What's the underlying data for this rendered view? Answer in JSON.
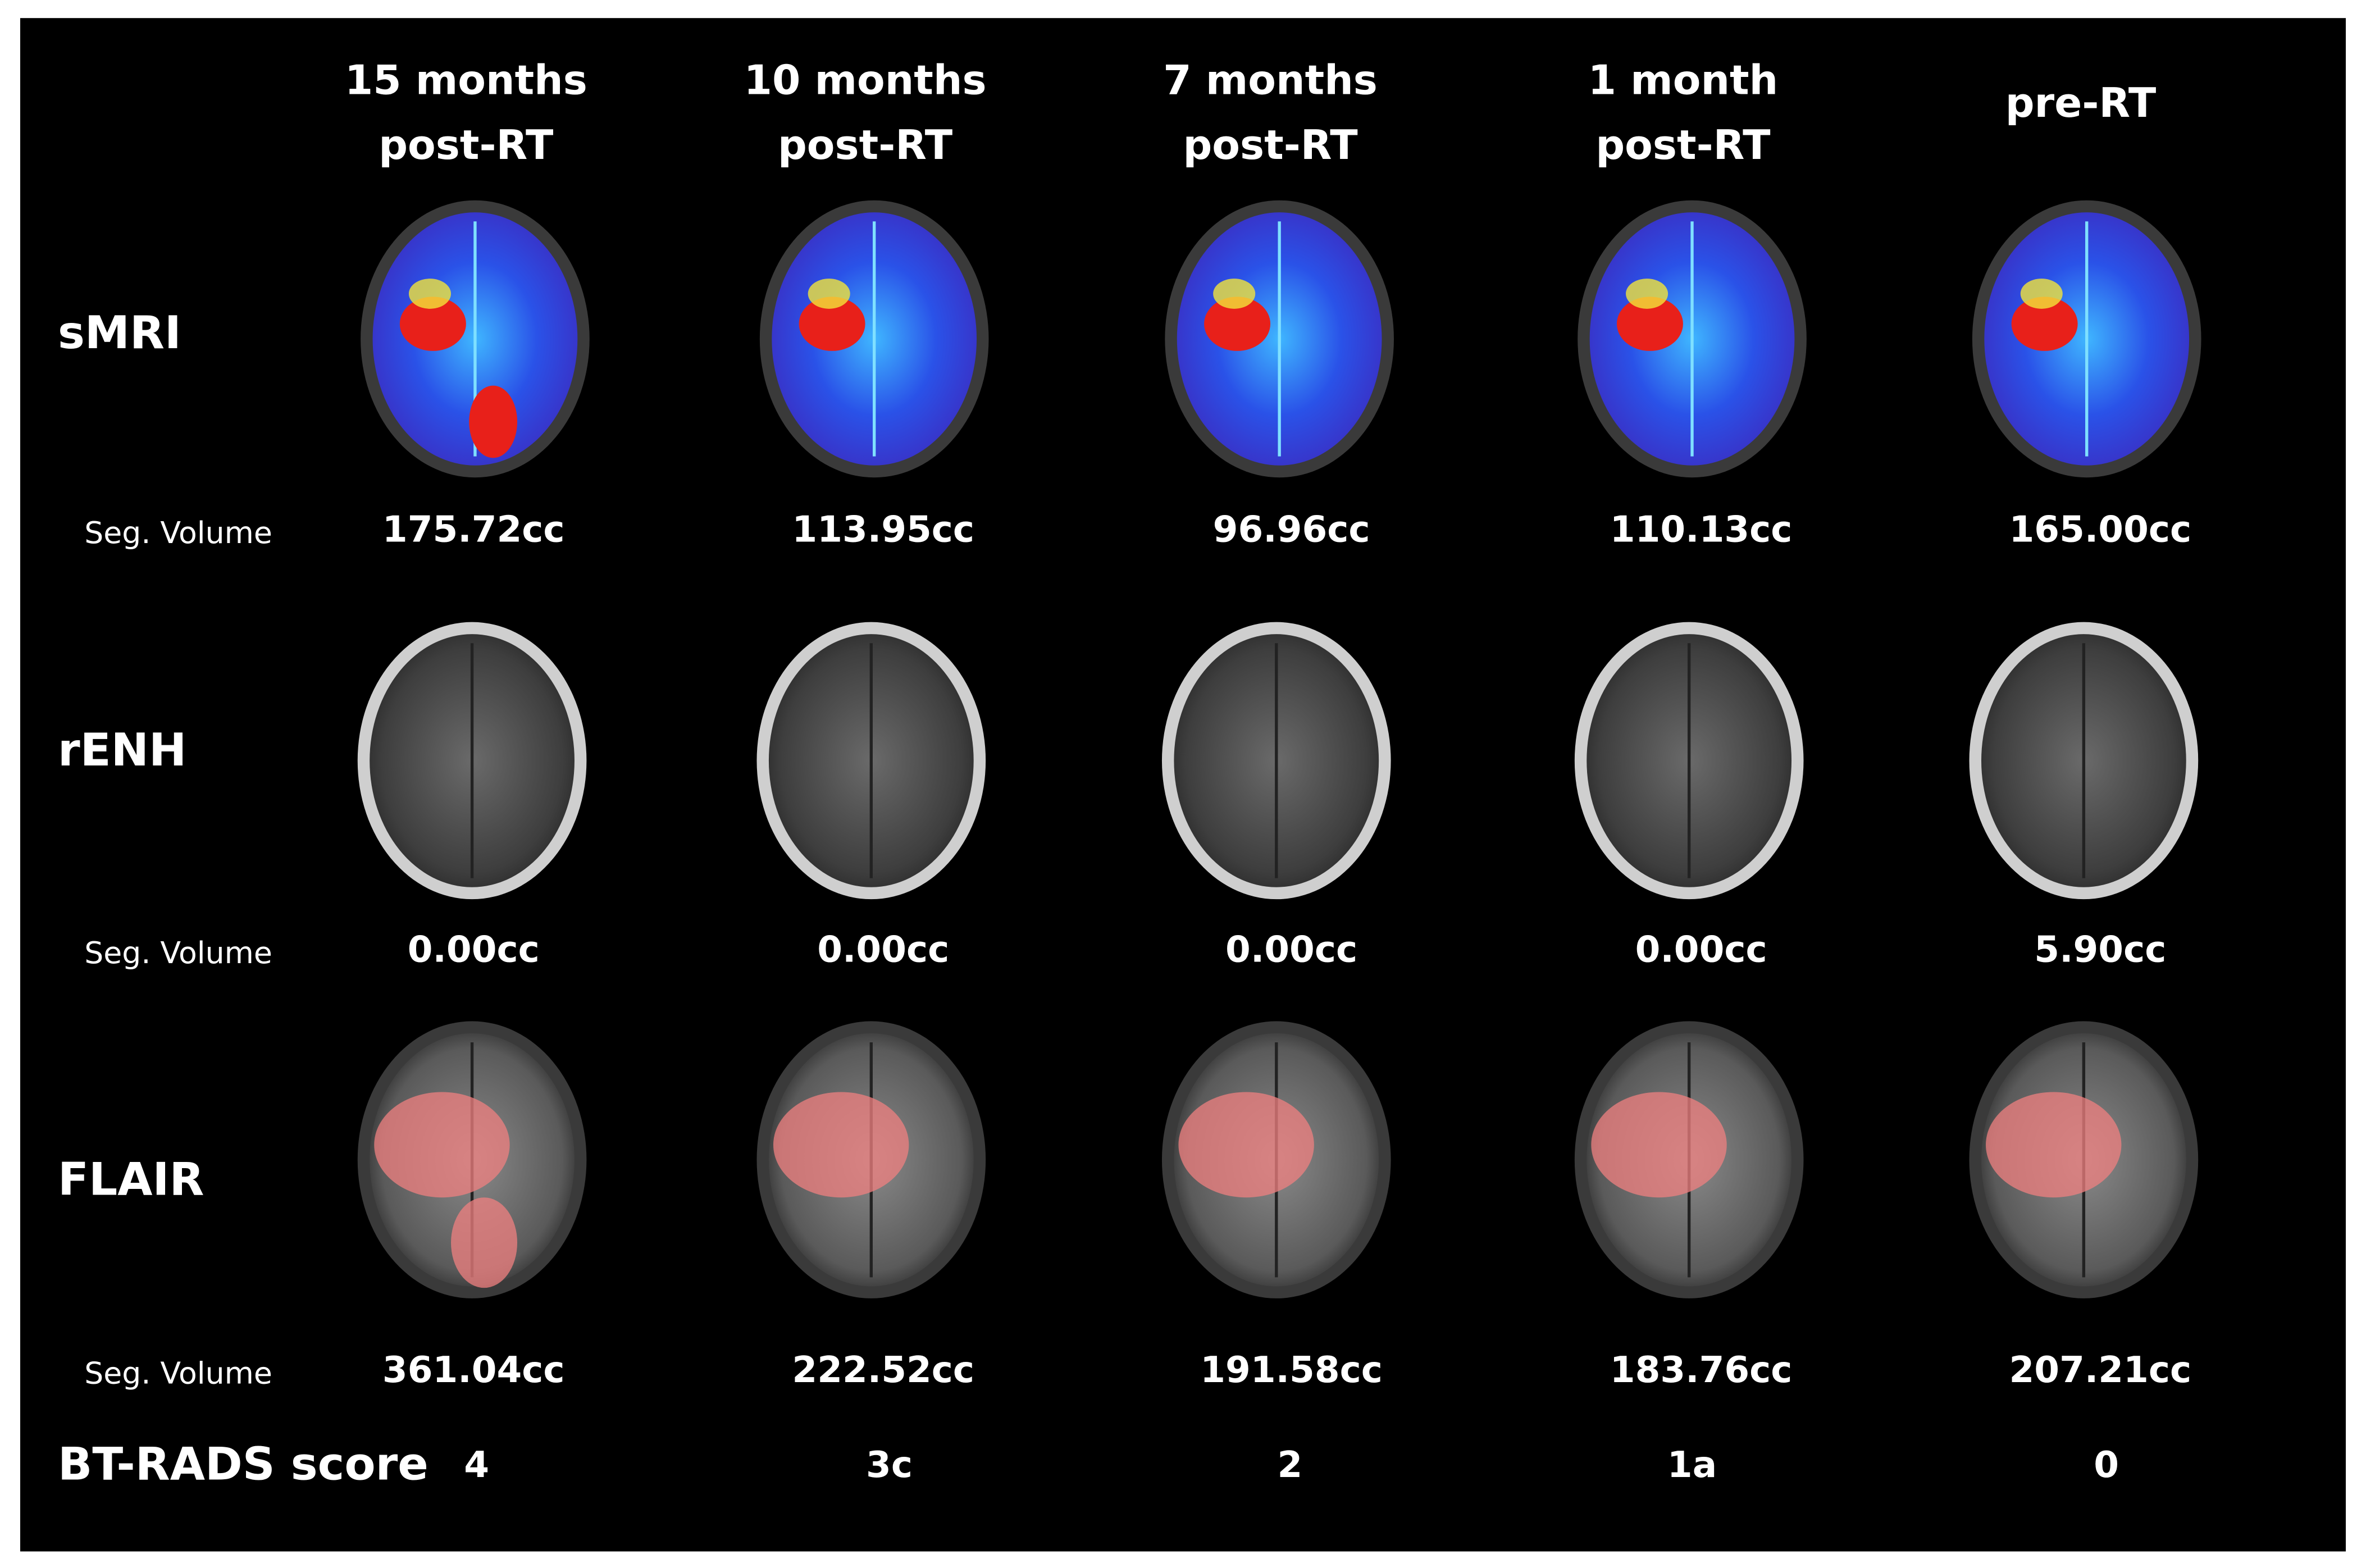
{
  "columns": [
    {
      "line1": "15 months",
      "line2": "post-RT"
    },
    {
      "line1": "10 months",
      "line2": "post-RT"
    },
    {
      "line1": "7 months",
      "line2": "post-RT"
    },
    {
      "line1": "1 month",
      "line2": "post-RT"
    },
    {
      "line1": "pre-RT"
    }
  ],
  "rows": [
    {
      "label": "sMRI",
      "seg_label": "Seg. Volume",
      "volumes": [
        "175.72cc",
        "113.95cc",
        "96.96cc",
        "110.13cc",
        "165.00cc"
      ]
    },
    {
      "label": "rENH",
      "seg_label": "Seg. Volume",
      "volumes": [
        "0.00cc",
        "0.00cc",
        "0.00cc",
        "0.00cc",
        "5.90cc"
      ]
    },
    {
      "label": "FLAIR",
      "seg_label": "Seg. Volume",
      "volumes": [
        "361.04cc",
        "222.52cc",
        "191.58cc",
        "183.76cc",
        "207.21cc"
      ]
    }
  ],
  "bt_rads": {
    "label": "BT-RADS score",
    "scores": [
      "4",
      "3c",
      "2",
      "1a",
      "0"
    ]
  }
}
